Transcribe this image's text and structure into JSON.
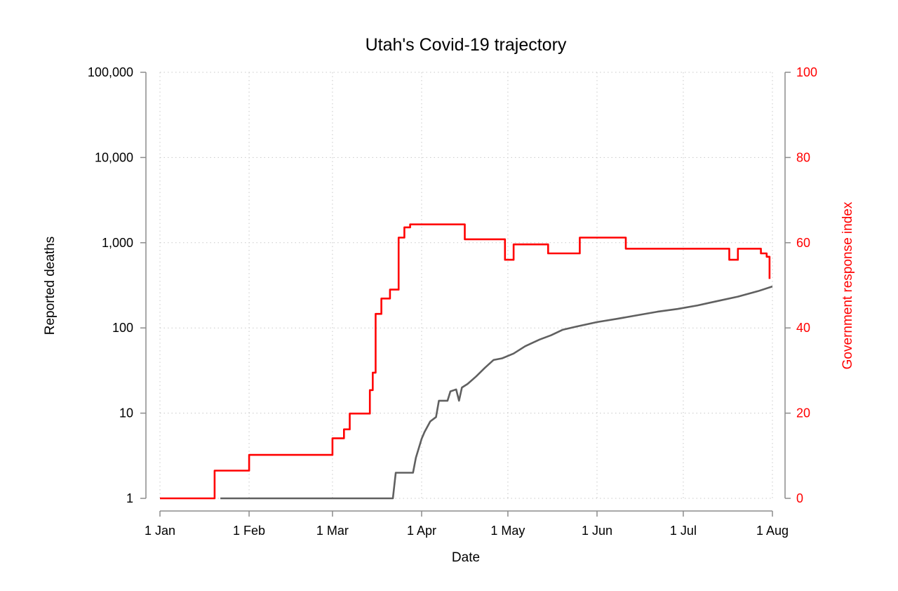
{
  "chart_data": {
    "type": "line",
    "title": "Utah's Covid-19 trajectory",
    "xlabel": "Date",
    "ylabel_left": "Reported deaths",
    "ylabel_right": "Government response index",
    "x_ticks": [
      {
        "date": "2020-01-01",
        "label": "1 Jan"
      },
      {
        "date": "2020-02-01",
        "label": "1 Feb"
      },
      {
        "date": "2020-03-01",
        "label": "1 Mar"
      },
      {
        "date": "2020-04-01",
        "label": "1 Apr"
      },
      {
        "date": "2020-05-01",
        "label": "1 May"
      },
      {
        "date": "2020-06-01",
        "label": "1 Jun"
      },
      {
        "date": "2020-07-01",
        "label": "1 Jul"
      },
      {
        "date": "2020-08-01",
        "label": "1 Aug"
      }
    ],
    "xlim": [
      "2020-01-01",
      "2020-08-01"
    ],
    "y_left": {
      "scale": "log",
      "lim": [
        1,
        100000
      ],
      "ticks": [
        {
          "value": 1,
          "label": "1"
        },
        {
          "value": 10,
          "label": "10"
        },
        {
          "value": 100,
          "label": "100"
        },
        {
          "value": 1000,
          "label": "1,000"
        },
        {
          "value": 10000,
          "label": "10,000"
        },
        {
          "value": 100000,
          "label": "100,000"
        }
      ]
    },
    "y_right": {
      "scale": "linear",
      "lim": [
        0,
        100
      ],
      "ticks": [
        {
          "value": 0,
          "label": "0"
        },
        {
          "value": 20,
          "label": "20"
        },
        {
          "value": 40,
          "label": "40"
        },
        {
          "value": 60,
          "label": "60"
        },
        {
          "value": 80,
          "label": "80"
        },
        {
          "value": 100,
          "label": "100"
        }
      ],
      "color": "#ff0000"
    },
    "grid": true,
    "series": [
      {
        "axis": "right",
        "color": "#ff0000",
        "step": true,
        "points": [
          [
            "2020-01-01",
            0
          ],
          [
            "2020-01-20",
            6.5
          ],
          [
            "2020-02-01",
            10.2
          ],
          [
            "2020-03-01",
            14.1
          ],
          [
            "2020-03-05",
            16.2
          ],
          [
            "2020-03-07",
            19.9
          ],
          [
            "2020-03-14",
            25.4
          ],
          [
            "2020-03-15",
            29.5
          ],
          [
            "2020-03-16",
            43.3
          ],
          [
            "2020-03-18",
            46.9
          ],
          [
            "2020-03-21",
            49.0
          ],
          [
            "2020-03-24",
            61.2
          ],
          [
            "2020-03-26",
            63.6
          ],
          [
            "2020-03-28",
            64.3
          ],
          [
            "2020-04-16",
            60.8
          ],
          [
            "2020-04-30",
            56.0
          ],
          [
            "2020-05-03",
            59.6
          ],
          [
            "2020-05-15",
            57.5
          ],
          [
            "2020-05-26",
            61.2
          ],
          [
            "2020-06-11",
            58.6
          ],
          [
            "2020-07-17",
            56.0
          ],
          [
            "2020-07-20",
            58.6
          ],
          [
            "2020-07-28",
            57.5
          ],
          [
            "2020-07-30",
            56.7
          ],
          [
            "2020-07-31",
            51.5
          ]
        ]
      },
      {
        "axis": "left",
        "color": "#606060",
        "step": false,
        "points": [
          [
            "2020-01-22",
            1
          ],
          [
            "2020-03-22",
            1
          ],
          [
            "2020-03-23",
            2
          ],
          [
            "2020-03-29",
            2
          ],
          [
            "2020-03-30",
            3
          ],
          [
            "2020-04-01",
            5
          ],
          [
            "2020-04-02",
            6
          ],
          [
            "2020-04-04",
            8
          ],
          [
            "2020-04-06",
            9
          ],
          [
            "2020-04-07",
            14
          ],
          [
            "2020-04-10",
            14
          ],
          [
            "2020-04-11",
            18
          ],
          [
            "2020-04-13",
            19
          ],
          [
            "2020-04-14",
            14
          ],
          [
            "2020-04-15",
            20
          ],
          [
            "2020-04-17",
            22
          ],
          [
            "2020-04-20",
            27
          ],
          [
            "2020-04-23",
            34
          ],
          [
            "2020-04-26",
            42
          ],
          [
            "2020-04-29",
            44
          ],
          [
            "2020-05-03",
            50
          ],
          [
            "2020-05-07",
            61
          ],
          [
            "2020-05-12",
            73
          ],
          [
            "2020-05-16",
            82
          ],
          [
            "2020-05-20",
            95
          ],
          [
            "2020-05-25",
            104
          ],
          [
            "2020-06-01",
            117
          ],
          [
            "2020-06-08",
            128
          ],
          [
            "2020-06-15",
            141
          ],
          [
            "2020-06-22",
            155
          ],
          [
            "2020-06-29",
            167
          ],
          [
            "2020-07-06",
            184
          ],
          [
            "2020-07-13",
            207
          ],
          [
            "2020-07-20",
            233
          ],
          [
            "2020-07-27",
            270
          ],
          [
            "2020-08-01",
            307
          ]
        ]
      }
    ]
  }
}
